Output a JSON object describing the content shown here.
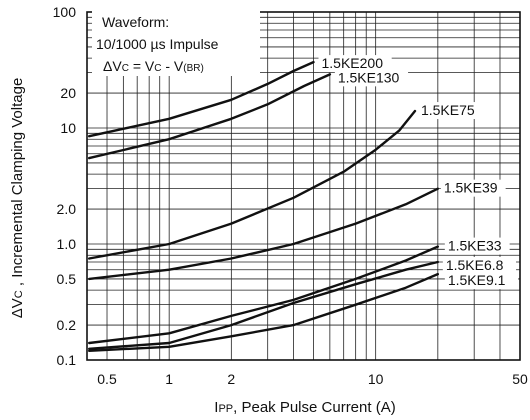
{
  "chart_data": {
    "type": "line",
    "x_scale": "log",
    "y_scale": "log",
    "xlim": [
      0.4,
      50
    ],
    "ylim": [
      0.1,
      100
    ],
    "x_ticks": [
      {
        "value": 0.5,
        "label": "0.5"
      },
      {
        "value": 1,
        "label": "1"
      },
      {
        "value": 2,
        "label": "2"
      },
      {
        "value": 10,
        "label": "10"
      },
      {
        "value": 50,
        "label": "50"
      }
    ],
    "y_ticks": [
      {
        "value": 0.1,
        "label": "0.1"
      },
      {
        "value": 0.2,
        "label": "0.2"
      },
      {
        "value": 0.5,
        "label": "0.5"
      },
      {
        "value": 1,
        "label": "1.0"
      },
      {
        "value": 2,
        "label": "2.0"
      },
      {
        "value": 10,
        "label": "10"
      },
      {
        "value": 20,
        "label": "20"
      },
      {
        "value": 100,
        "label": "100"
      }
    ],
    "grid": true,
    "xlabel_parts": [
      "I",
      "PP",
      ", Peak Pulse Current (A)"
    ],
    "ylabel_parts": [
      "ΔV",
      "C",
      " , Incremental Clamping  Voltage"
    ],
    "annotation": {
      "line1": "Waveform:",
      "line2": "10/1000 µs Impulse",
      "line3_parts": [
        "ΔV",
        "C",
        " = V",
        "C",
        " - V",
        "(BR)"
      ]
    },
    "series": [
      {
        "name": "1.5KE200",
        "points": [
          [
            0.41,
            8.5
          ],
          [
            1.0,
            12
          ],
          [
            2.0,
            17.5
          ],
          [
            3.0,
            24
          ],
          [
            4.0,
            31
          ],
          [
            5.0,
            37
          ]
        ]
      },
      {
        "name": "1.5KE130",
        "points": [
          [
            0.41,
            5.5
          ],
          [
            1.0,
            8
          ],
          [
            2.0,
            12
          ],
          [
            3.0,
            16
          ],
          [
            4.5,
            23
          ],
          [
            6.0,
            29
          ]
        ]
      },
      {
        "name": "1.5KE75",
        "points": [
          [
            0.41,
            0.75
          ],
          [
            1.0,
            1.0
          ],
          [
            2.0,
            1.5
          ],
          [
            4.0,
            2.5
          ],
          [
            7.0,
            4.2
          ],
          [
            10.0,
            6.5
          ],
          [
            13.0,
            9.5
          ],
          [
            15.5,
            14
          ]
        ]
      },
      {
        "name": "1.5KE39",
        "points": [
          [
            0.41,
            0.5
          ],
          [
            1.0,
            0.6
          ],
          [
            2.0,
            0.75
          ],
          [
            4.0,
            1.0
          ],
          [
            8.0,
            1.5
          ],
          [
            14.0,
            2.2
          ],
          [
            20.0,
            3.0
          ]
        ]
      },
      {
        "name": "1.5KE33",
        "points": [
          [
            0.41,
            0.14
          ],
          [
            1.0,
            0.17
          ],
          [
            2.0,
            0.24
          ],
          [
            4.0,
            0.33
          ],
          [
            8.0,
            0.5
          ],
          [
            14.0,
            0.72
          ],
          [
            20.0,
            0.95
          ]
        ]
      },
      {
        "name": "1.5KE6.8",
        "points": [
          [
            0.41,
            0.125
          ],
          [
            1.0,
            0.14
          ],
          [
            2.0,
            0.2
          ],
          [
            4.0,
            0.31
          ],
          [
            8.0,
            0.45
          ],
          [
            14.0,
            0.6
          ],
          [
            20.0,
            0.7
          ]
        ]
      },
      {
        "name": "1.5KE9.1",
        "points": [
          [
            0.41,
            0.12
          ],
          [
            1.0,
            0.13
          ],
          [
            2.0,
            0.16
          ],
          [
            4.0,
            0.2
          ],
          [
            8.0,
            0.3
          ],
          [
            14.0,
            0.42
          ],
          [
            20.0,
            0.55
          ]
        ]
      }
    ]
  }
}
